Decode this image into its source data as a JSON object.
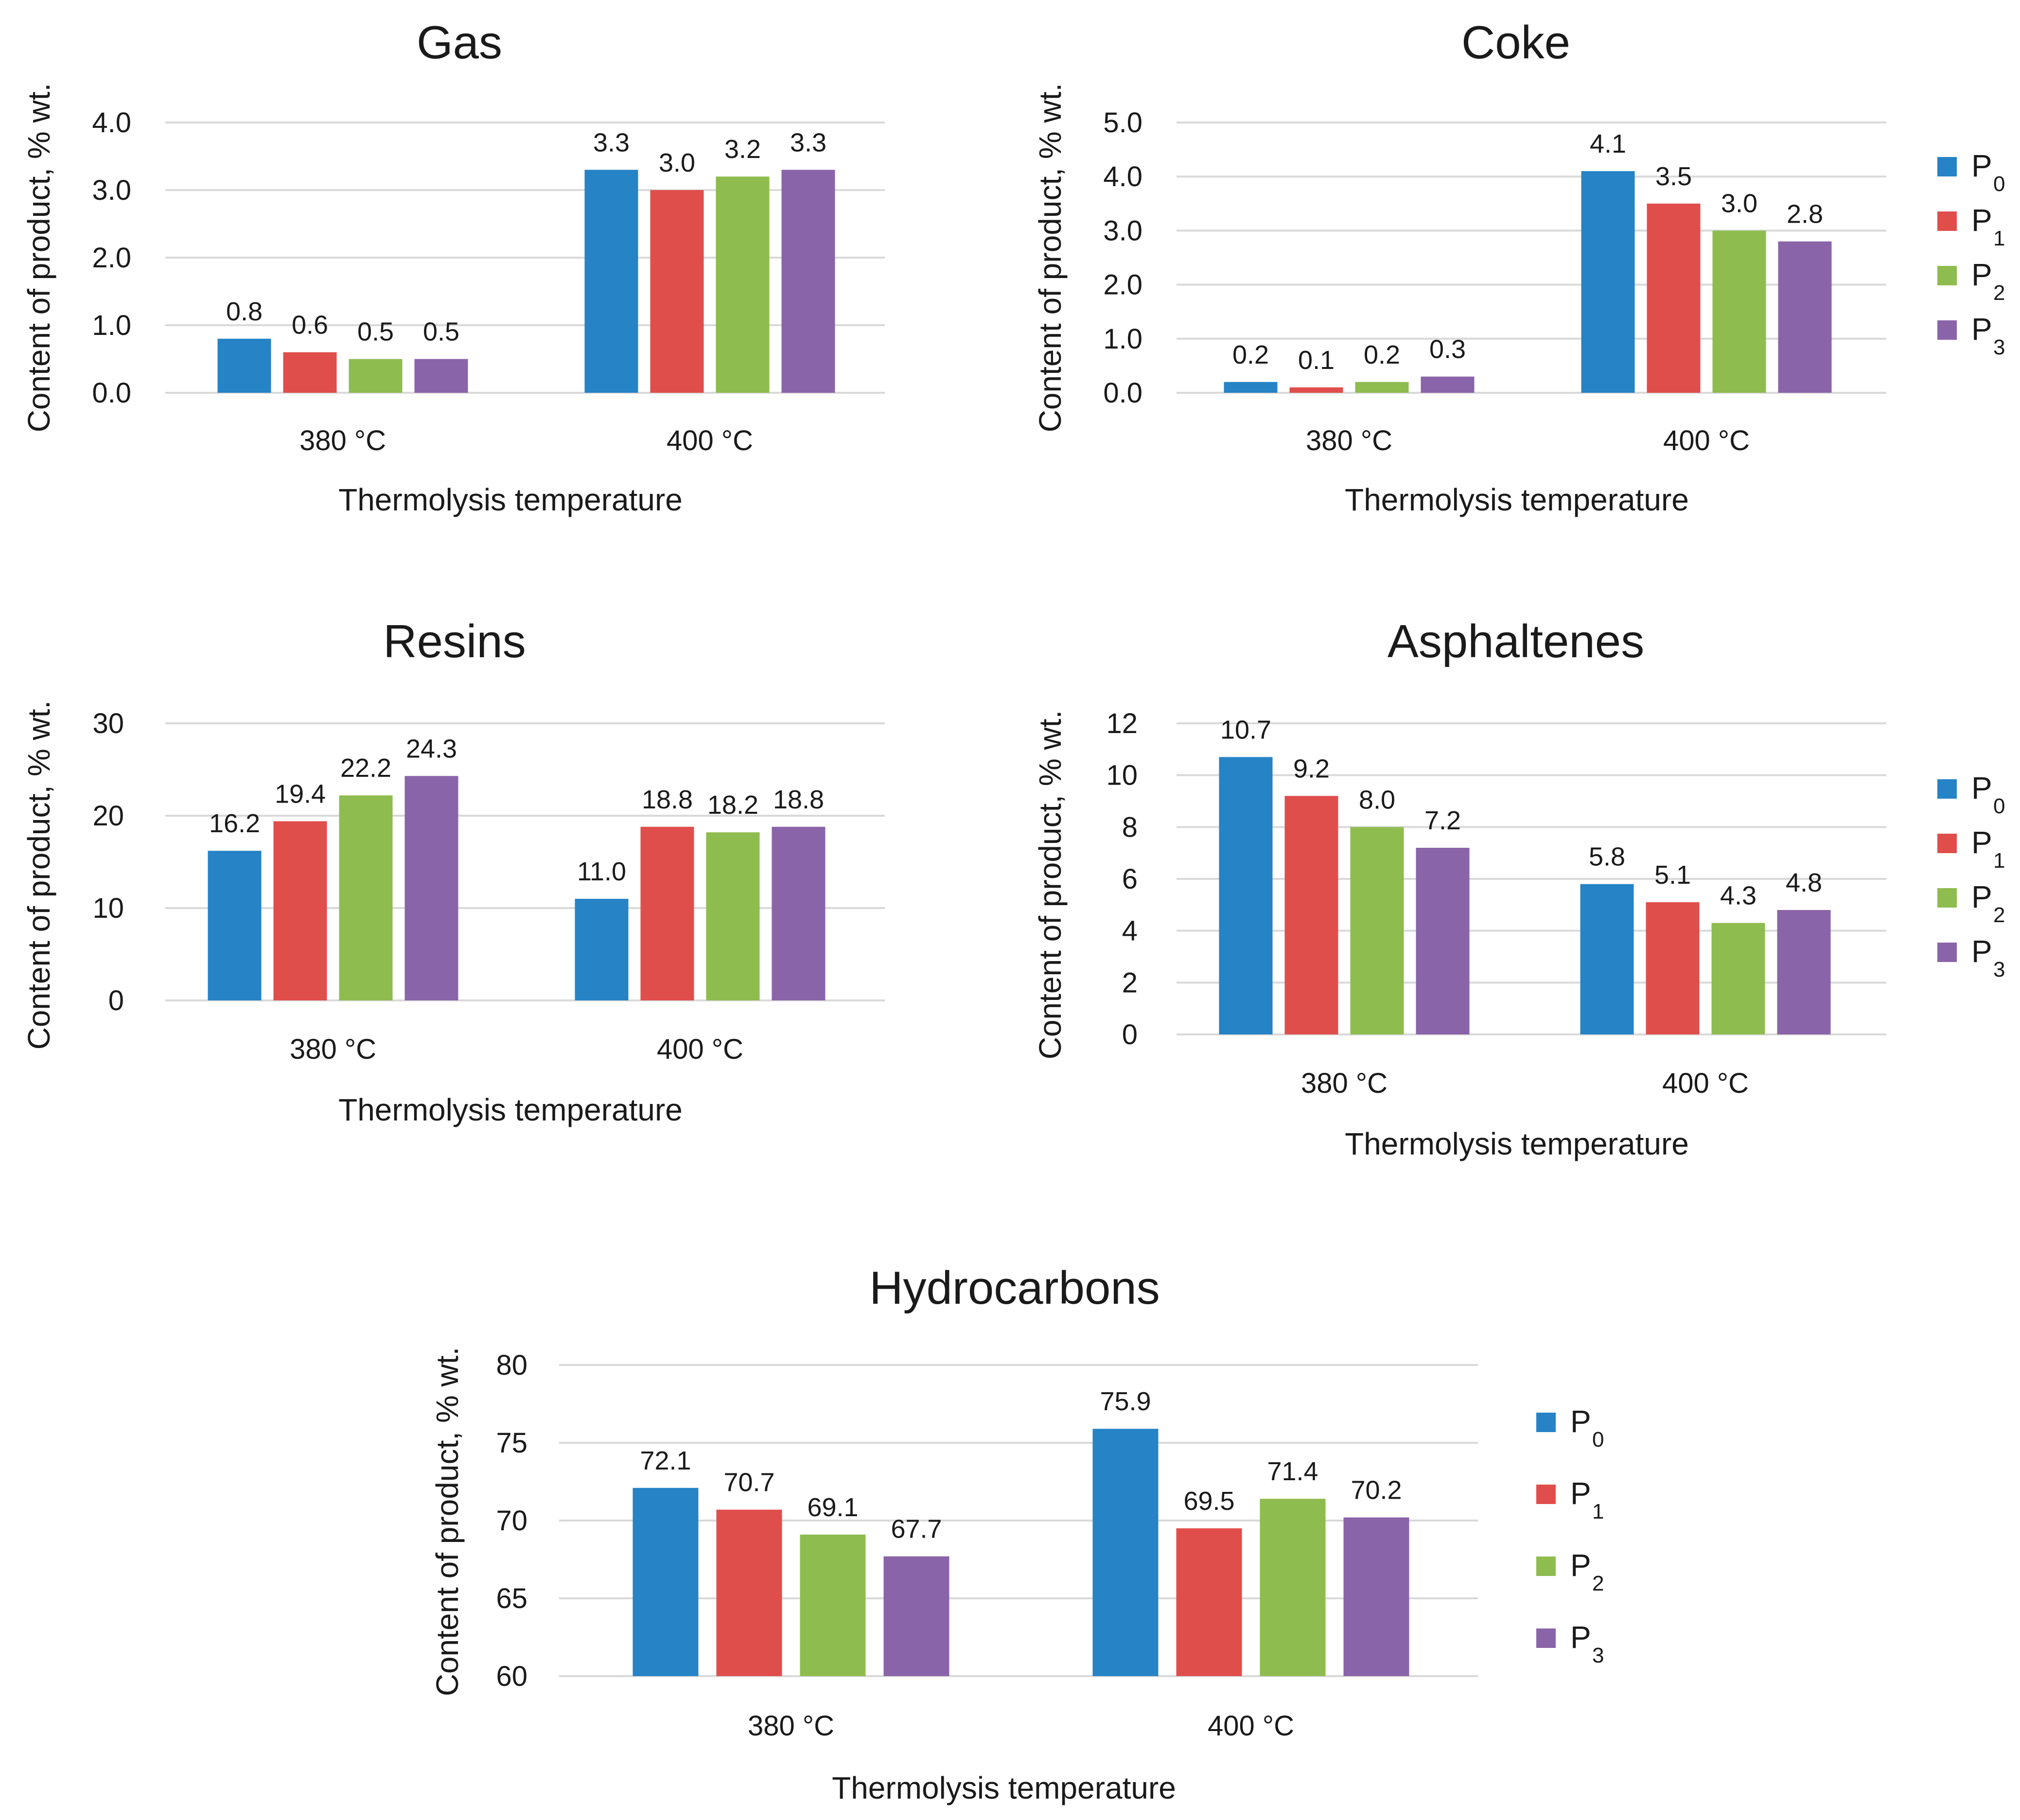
{
  "series_colors": [
    "#2683c6",
    "#e04e4b",
    "#8fbc4f",
    "#8a64a8"
  ],
  "legend_labels": [
    "P",
    "P",
    "P",
    "P"
  ],
  "legend_subscripts": [
    "0",
    "1",
    "2",
    "3"
  ],
  "chart_data": [
    {
      "type": "bar",
      "title": "Gas",
      "xlabel": "Thermolysis temperature",
      "ylabel": "Content of product, % wt.",
      "categories": [
        "380 °C",
        "400 °C"
      ],
      "ylim": [
        0,
        4.0
      ],
      "yticks": [
        "0.0",
        "1.0",
        "2.0",
        "3.0",
        "4.0"
      ],
      "grid": true,
      "legend": "none",
      "series": [
        {
          "name": "P0",
          "values": [
            0.8,
            3.3
          ],
          "labels": [
            "0.8",
            "3.3"
          ]
        },
        {
          "name": "P1",
          "values": [
            0.6,
            3.0
          ],
          "labels": [
            "0.6",
            "3.0"
          ]
        },
        {
          "name": "P2",
          "values": [
            0.5,
            3.2
          ],
          "labels": [
            "0.5",
            "3.2"
          ]
        },
        {
          "name": "P3",
          "values": [
            0.5,
            3.3
          ],
          "labels": [
            "0.5",
            "3.3"
          ]
        }
      ]
    },
    {
      "type": "bar",
      "title": "Coke",
      "xlabel": "Thermolysis temperature",
      "ylabel": "Content of product, % wt.",
      "categories": [
        "380 °C",
        "400 °C"
      ],
      "ylim": [
        0,
        5.0
      ],
      "yticks": [
        "0.0",
        "1.0",
        "2.0",
        "3.0",
        "4.0",
        "5.0"
      ],
      "grid": true,
      "legend": "right",
      "series": [
        {
          "name": "P0",
          "values": [
            0.2,
            4.1
          ],
          "labels": [
            "0.2",
            "4.1"
          ]
        },
        {
          "name": "P1",
          "values": [
            0.1,
            3.5
          ],
          "labels": [
            "0.1",
            "3.5"
          ]
        },
        {
          "name": "P2",
          "values": [
            0.2,
            3.0
          ],
          "labels": [
            "0.2",
            "3.0"
          ]
        },
        {
          "name": "P3",
          "values": [
            0.3,
            2.8
          ],
          "labels": [
            "0.3",
            "2.8"
          ]
        }
      ]
    },
    {
      "type": "bar",
      "title": "Resins",
      "xlabel": "Thermolysis temperature",
      "ylabel": "Content of product, % wt.",
      "categories": [
        "380 °C",
        "400 °C"
      ],
      "ylim": [
        0,
        30
      ],
      "yticks": [
        "0",
        "10",
        "20",
        "30"
      ],
      "grid": true,
      "legend": "none",
      "series": [
        {
          "name": "P0",
          "values": [
            16.2,
            11.0
          ],
          "labels": [
            "16.2",
            "11.0"
          ]
        },
        {
          "name": "P1",
          "values": [
            19.4,
            18.8
          ],
          "labels": [
            "19.4",
            "18.8"
          ]
        },
        {
          "name": "P2",
          "values": [
            22.2,
            18.2
          ],
          "labels": [
            "22.2",
            "18.2"
          ]
        },
        {
          "name": "P3",
          "values": [
            24.3,
            18.8
          ],
          "labels": [
            "24.3",
            "18.8"
          ]
        }
      ]
    },
    {
      "type": "bar",
      "title": "Asphaltenes",
      "xlabel": "Thermolysis temperature",
      "ylabel": "Content of product, % wt.",
      "categories": [
        "380 °C",
        "400 °C"
      ],
      "ylim": [
        0,
        12
      ],
      "yticks": [
        "0",
        "2",
        "4",
        "6",
        "8",
        "10",
        "12"
      ],
      "grid": true,
      "legend": "right",
      "series": [
        {
          "name": "P0",
          "values": [
            10.7,
            5.8
          ],
          "labels": [
            "10.7",
            "5.8"
          ]
        },
        {
          "name": "P1",
          "values": [
            9.2,
            5.1
          ],
          "labels": [
            "9.2",
            "5.1"
          ]
        },
        {
          "name": "P2",
          "values": [
            8.0,
            4.3
          ],
          "labels": [
            "8.0",
            "4.3"
          ]
        },
        {
          "name": "P3",
          "values": [
            7.2,
            4.8
          ],
          "labels": [
            "7.2",
            "4.8"
          ]
        }
      ]
    },
    {
      "type": "bar",
      "title": "Hydrocarbons",
      "xlabel": "Thermolysis temperature",
      "ylabel": "Content of product, % wt.",
      "categories": [
        "380 °C",
        "400 °C"
      ],
      "ylim": [
        60,
        80
      ],
      "yticks": [
        "60",
        "65",
        "70",
        "75",
        "80"
      ],
      "grid": true,
      "legend": "right",
      "series": [
        {
          "name": "P0",
          "values": [
            72.1,
            75.9
          ],
          "labels": [
            "72.1",
            "75.9"
          ]
        },
        {
          "name": "P1",
          "values": [
            70.7,
            69.5
          ],
          "labels": [
            "70.7",
            "69.5"
          ]
        },
        {
          "name": "P2",
          "values": [
            69.1,
            71.4
          ],
          "labels": [
            "69.1",
            "71.4"
          ]
        },
        {
          "name": "P3",
          "values": [
            67.7,
            70.2
          ],
          "labels": [
            "67.7",
            "70.2"
          ]
        }
      ]
    }
  ]
}
